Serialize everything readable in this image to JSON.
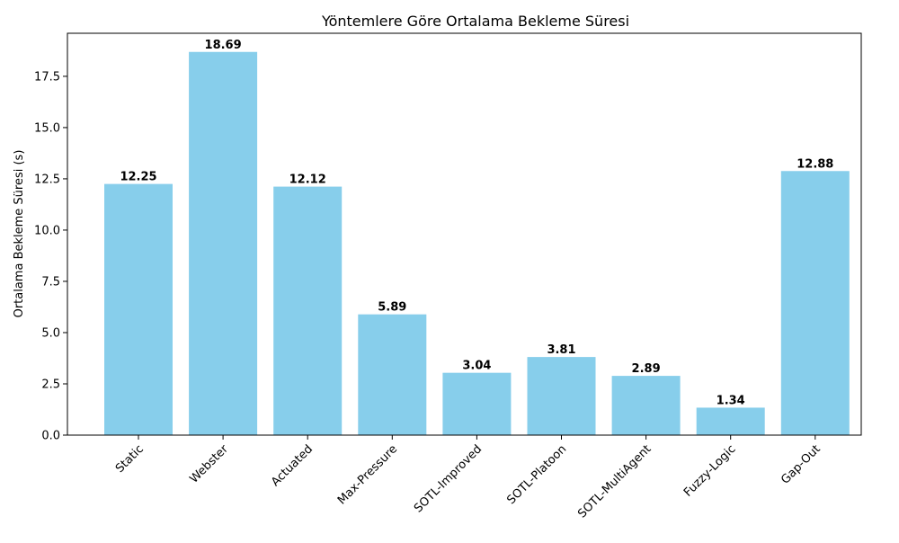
{
  "chart_data": {
    "type": "bar",
    "title": "Yöntemlere Göre Ortalama Bekleme Süresi",
    "xlabel": "",
    "ylabel": "Ortalama Bekleme Süresi (s)",
    "categories": [
      "Static",
      "Webster",
      "Actuated",
      "Max-Pressure",
      "SOTL-Improved",
      "SOTL-Platoon",
      "SOTL-MultiAgent",
      "Fuzzy-Logic",
      "Gap-Out"
    ],
    "values": [
      12.25,
      18.69,
      12.12,
      5.89,
      3.04,
      3.81,
      2.89,
      1.34,
      12.88
    ],
    "data_labels": [
      "12.25",
      "18.69",
      "12.12",
      "5.89",
      "3.04",
      "3.81",
      "2.89",
      "1.34",
      "12.88"
    ],
    "ylim": [
      0,
      19.6
    ],
    "yticks": [
      0.0,
      2.5,
      5.0,
      7.5,
      10.0,
      12.5,
      15.0,
      17.5
    ],
    "ytick_labels": [
      "0.0",
      "2.5",
      "5.0",
      "7.5",
      "10.0",
      "12.5",
      "15.0",
      "17.5"
    ],
    "grid": false,
    "bar_color": "#87ceeb",
    "x_tick_rotation_deg": 45
  }
}
